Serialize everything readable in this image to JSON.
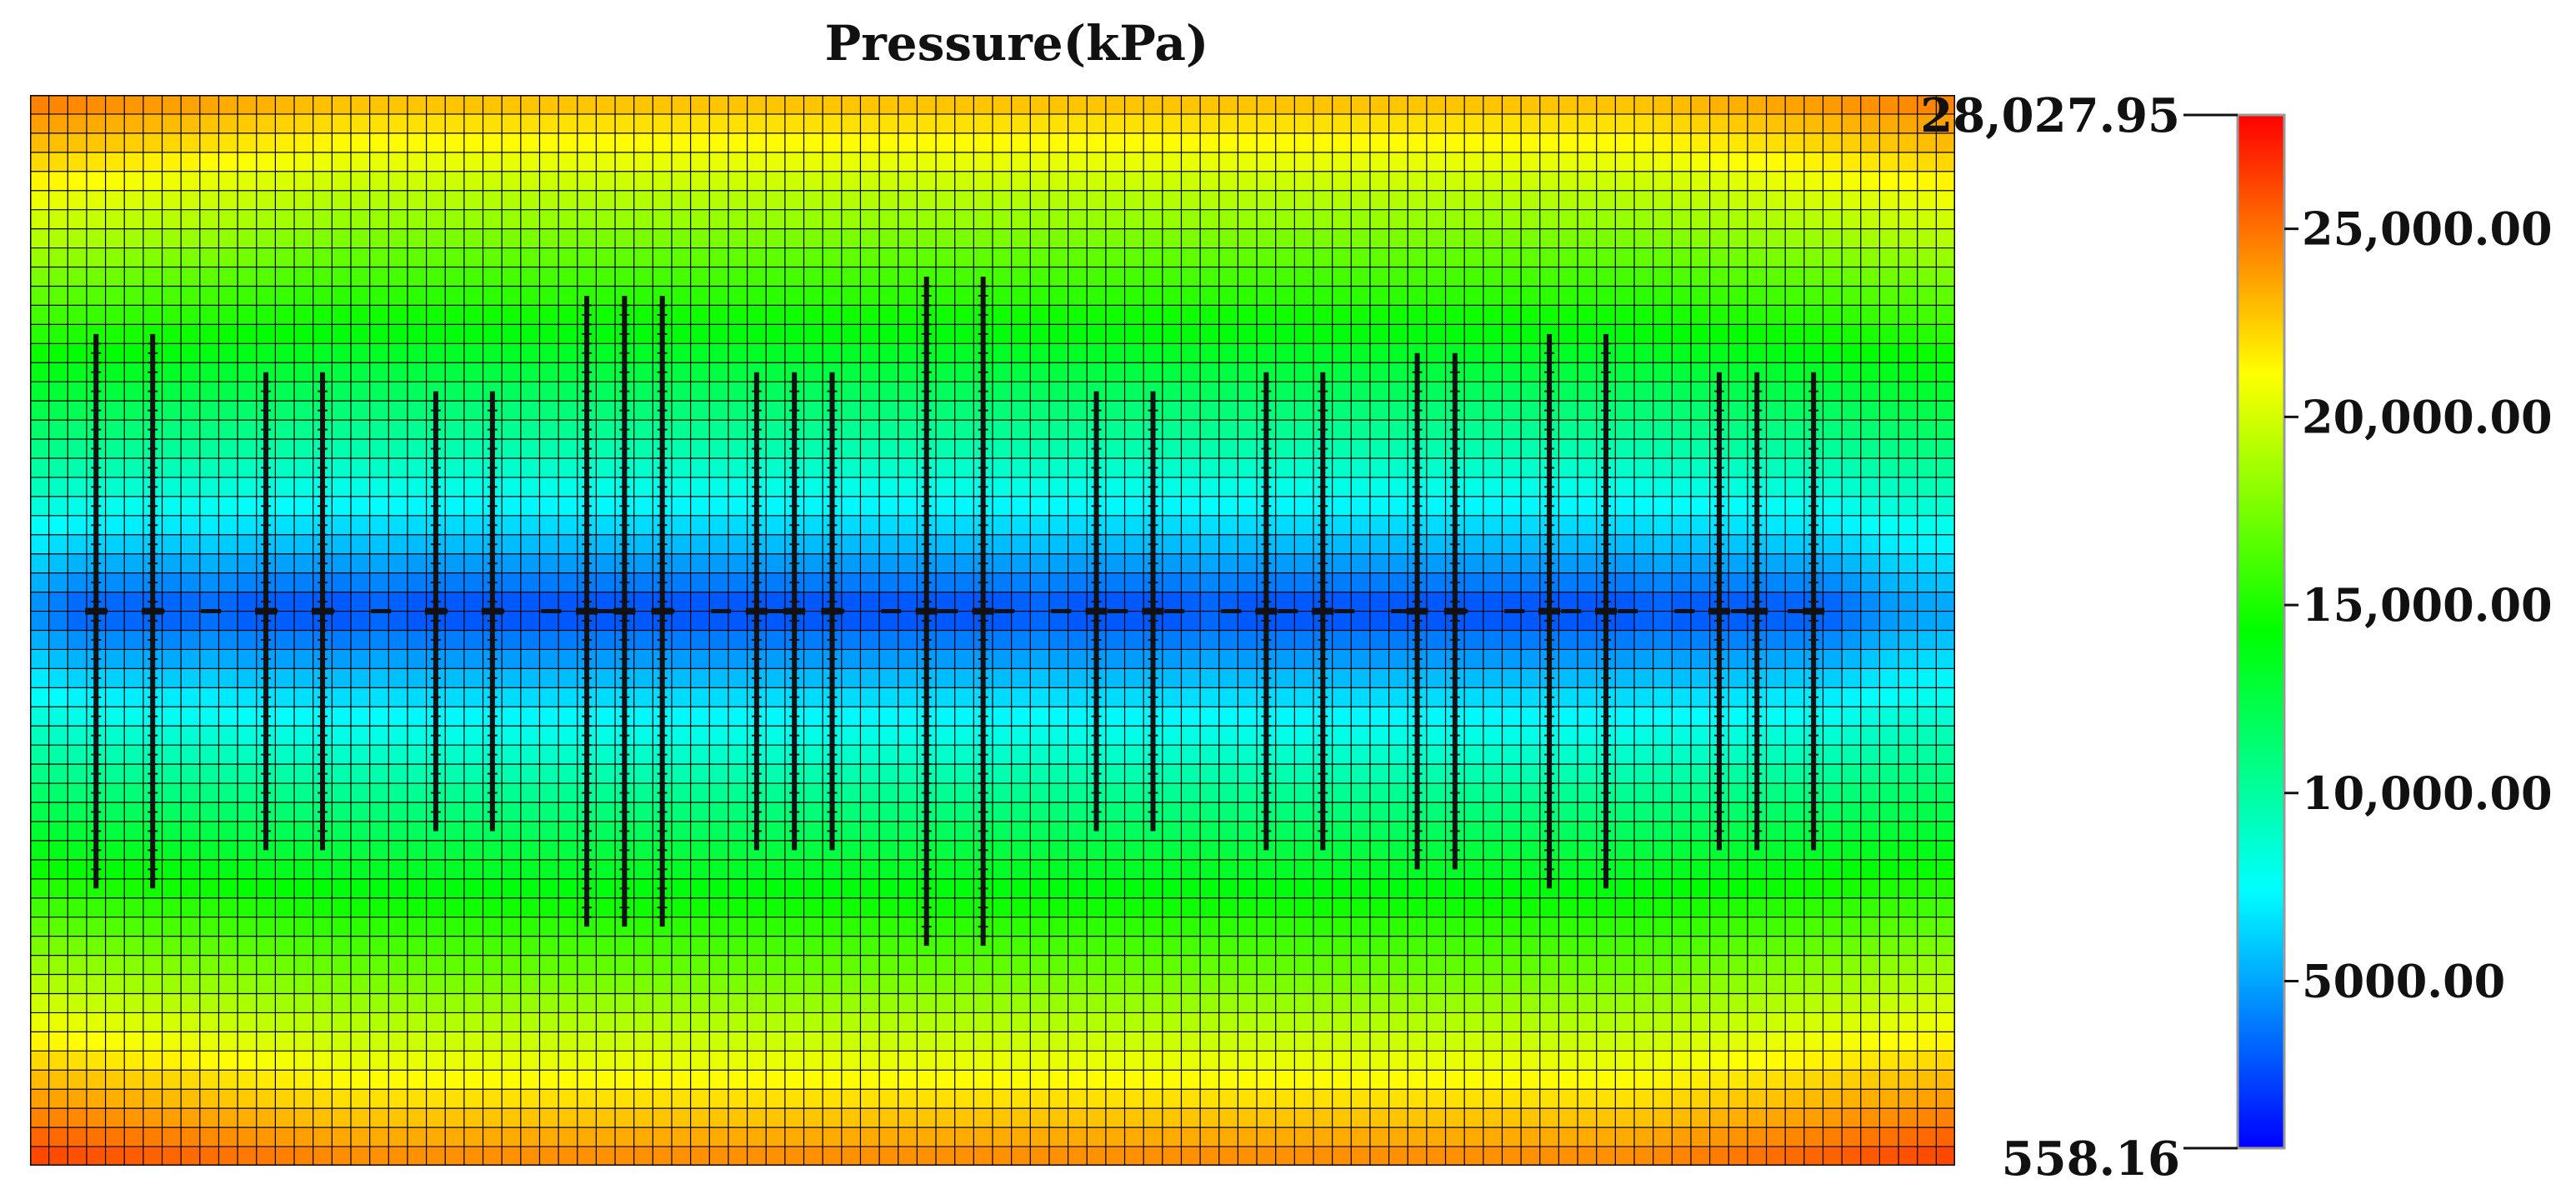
{
  "title": "Pressure(kPa)",
  "chart_data": {
    "type": "heatmap",
    "title": "Pressure(kPa)",
    "unit": "kPa",
    "range": {
      "min": 558.16,
      "max": 28027.95
    },
    "min_label": "558.16",
    "max_label": "28,027.95",
    "ticks": [
      {
        "value": 25000,
        "label": "25,000.00"
      },
      {
        "value": 20000,
        "label": "20,000.00"
      },
      {
        "value": 15000,
        "label": "15,000.00"
      },
      {
        "value": 10000,
        "label": "10,000.00"
      },
      {
        "value": 5000,
        "label": "5000.00"
      }
    ],
    "colormap": [
      "#0000ff",
      "#00ffff",
      "#00ff00",
      "#ffff00",
      "#ff0000"
    ],
    "grid": {
      "columns": 102,
      "rows": 56
    },
    "well_row": 27,
    "wells": [
      {
        "col": 3.5,
        "top_row": 12.5,
        "bottom_row": 41.5
      },
      {
        "col": 6.5,
        "top_row": 12.5,
        "bottom_row": 41.5
      },
      {
        "col": 12.5,
        "top_row": 14.5,
        "bottom_row": 39.5
      },
      {
        "col": 15.5,
        "top_row": 14.5,
        "bottom_row": 39.5
      },
      {
        "col": 21.5,
        "top_row": 15.5,
        "bottom_row": 38.5
      },
      {
        "col": 24.5,
        "top_row": 15.5,
        "bottom_row": 38.5
      },
      {
        "col": 29.5,
        "top_row": 10.5,
        "bottom_row": 43.5
      },
      {
        "col": 31.5,
        "top_row": 10.5,
        "bottom_row": 43.5
      },
      {
        "col": 33.5,
        "top_row": 10.5,
        "bottom_row": 43.5
      },
      {
        "col": 38.5,
        "top_row": 14.5,
        "bottom_row": 39.5
      },
      {
        "col": 40.5,
        "top_row": 14.5,
        "bottom_row": 39.5
      },
      {
        "col": 42.5,
        "top_row": 14.5,
        "bottom_row": 39.5
      },
      {
        "col": 47.5,
        "top_row": 9.5,
        "bottom_row": 44.5
      },
      {
        "col": 50.5,
        "top_row": 9.5,
        "bottom_row": 44.5
      },
      {
        "col": 56.5,
        "top_row": 15.5,
        "bottom_row": 38.5
      },
      {
        "col": 59.5,
        "top_row": 15.5,
        "bottom_row": 38.5
      },
      {
        "col": 65.5,
        "top_row": 14.5,
        "bottom_row": 39.5
      },
      {
        "col": 68.5,
        "top_row": 14.5,
        "bottom_row": 39.5
      },
      {
        "col": 73.5,
        "top_row": 13.5,
        "bottom_row": 40.5
      },
      {
        "col": 75.5,
        "top_row": 13.5,
        "bottom_row": 40.5
      },
      {
        "col": 80.5,
        "top_row": 12.5,
        "bottom_row": 41.5
      },
      {
        "col": 83.5,
        "top_row": 12.5,
        "bottom_row": 41.5
      },
      {
        "col": 89.5,
        "top_row": 14.5,
        "bottom_row": 39.5
      },
      {
        "col": 91.5,
        "top_row": 14.5,
        "bottom_row": 39.5
      },
      {
        "col": 94.5,
        "top_row": 14.5,
        "bottom_row": 39.5
      }
    ]
  }
}
